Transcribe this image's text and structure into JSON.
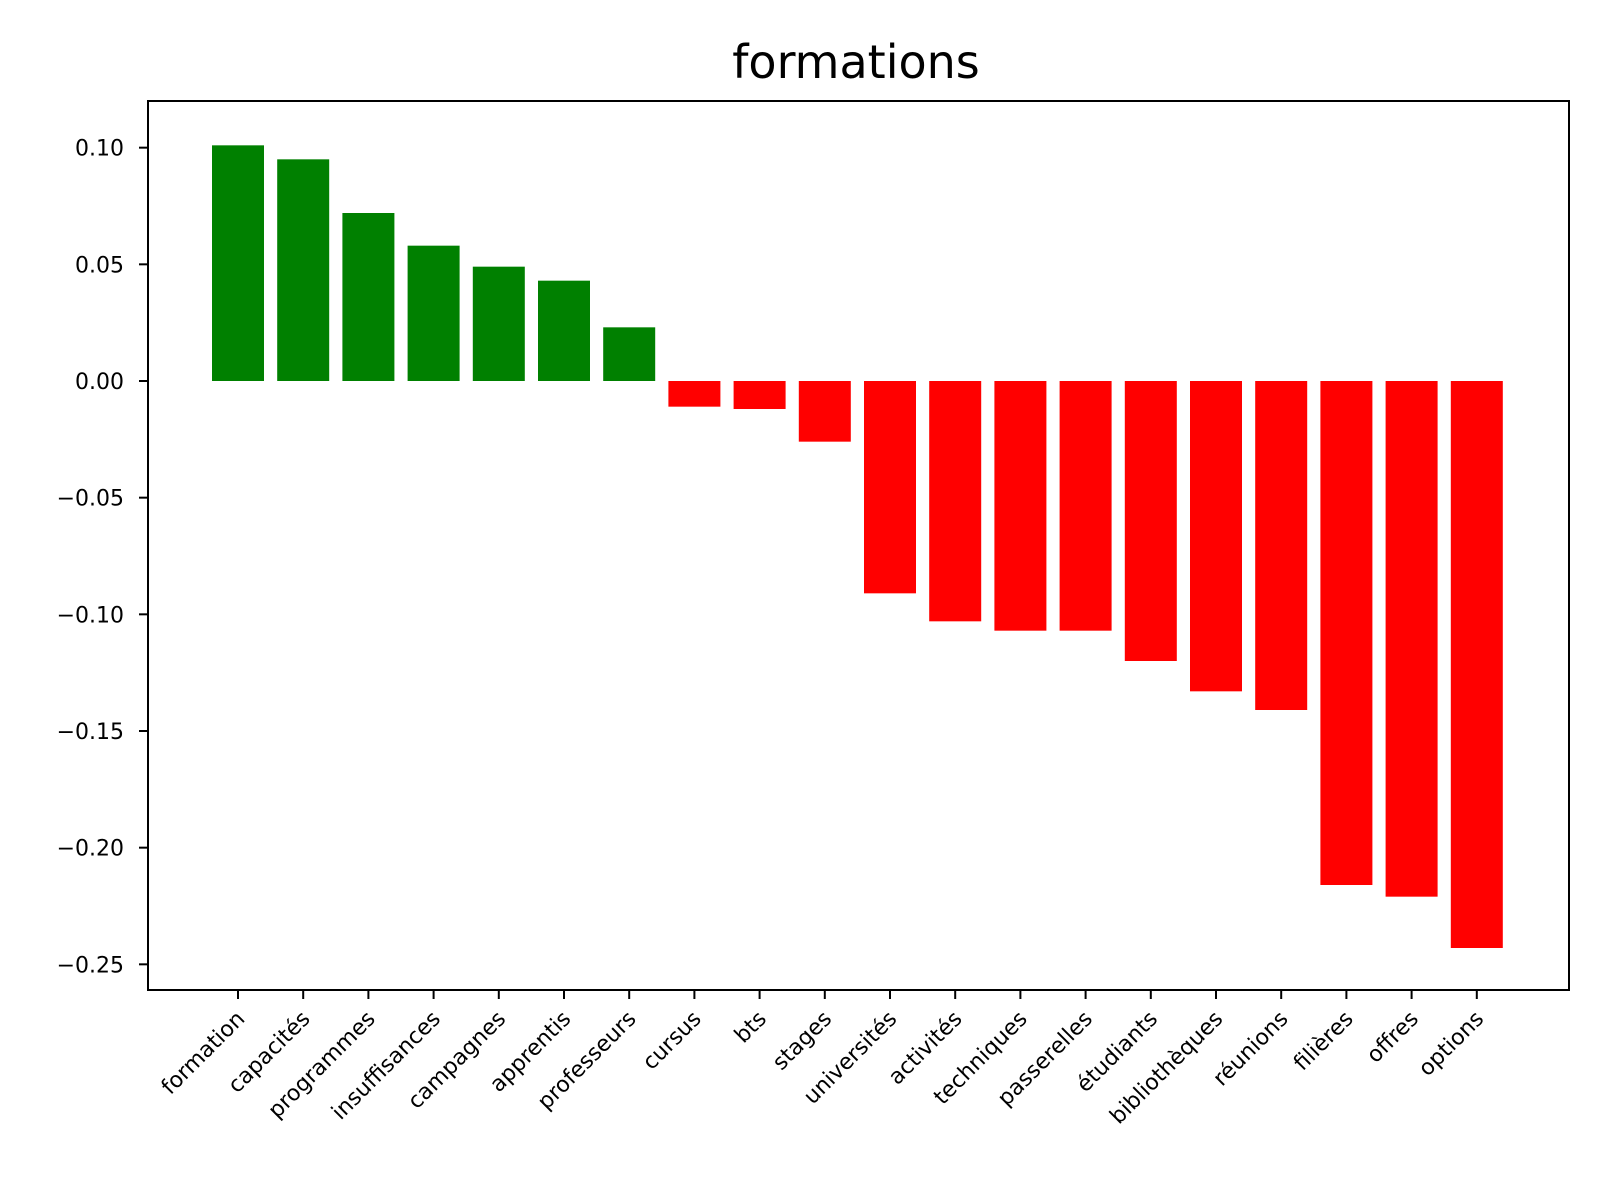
{
  "chart_data": {
    "type": "bar",
    "title": "formations",
    "xlabel": "",
    "ylabel": "",
    "ylim": [
      -0.261,
      0.12
    ],
    "yticks": [
      0.1,
      0.05,
      0.0,
      -0.05,
      -0.1,
      -0.15,
      -0.2,
      -0.25
    ],
    "ytick_labels": [
      "0.10",
      "0.05",
      "0.00",
      "−0.05",
      "−0.10",
      "−0.15",
      "−0.20",
      "−0.25"
    ],
    "grid": false,
    "categories": [
      "formation",
      "capacités",
      "programmes",
      "insuffisances",
      "campagnes",
      "apprentis",
      "professeurs",
      "cursus",
      "bts",
      "stages",
      "universités",
      "activités",
      "techniques",
      "passerelles",
      "étudiants",
      "bibliothèques",
      "réunions",
      "filières",
      "offres",
      "options"
    ],
    "values": [
      0.101,
      0.095,
      0.072,
      0.058,
      0.049,
      0.043,
      0.023,
      -0.011,
      -0.012,
      -0.026,
      -0.091,
      -0.103,
      -0.107,
      -0.107,
      -0.12,
      -0.133,
      -0.141,
      -0.216,
      -0.221,
      -0.243
    ],
    "colors": {
      "positive": "#008000",
      "negative": "#ff0000"
    }
  }
}
